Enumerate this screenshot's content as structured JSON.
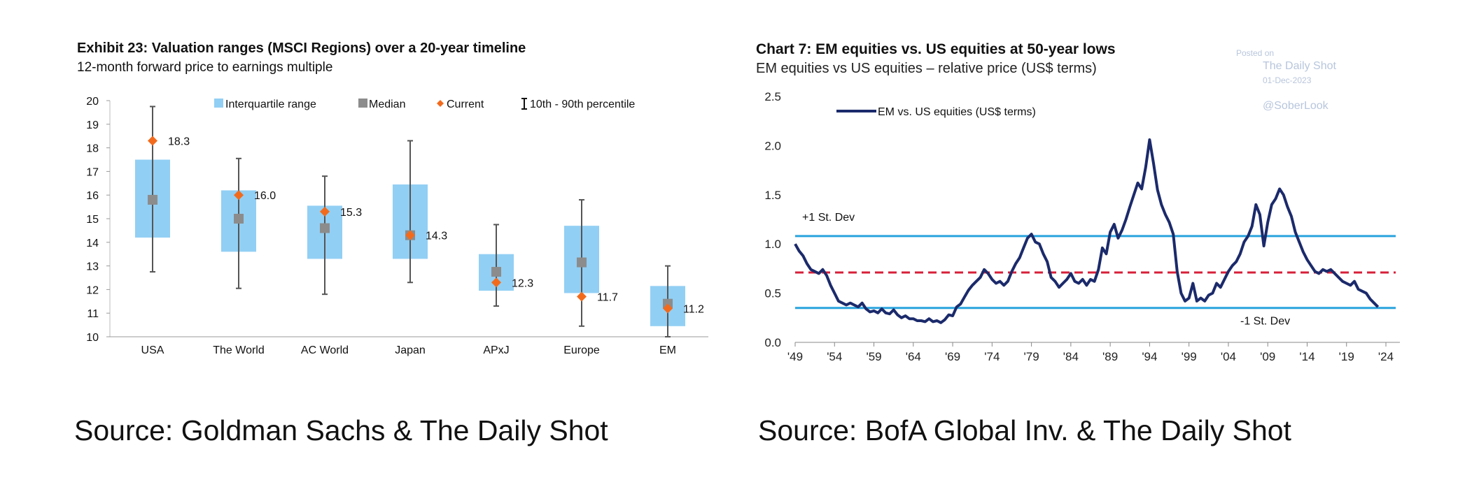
{
  "left_source": "Source: Goldman Sachs & The Daily Shot",
  "right_source": "Source: BofA Global Inv. & The Daily Shot",
  "chart_data": [
    {
      "type": "box",
      "title": "Exhibit 23: Valuation ranges (MSCI Regions) over a 20-year timeline",
      "subtitle": "12-month forward price to earnings multiple",
      "xlabel": "",
      "ylabel": "",
      "ylim": [
        10,
        20
      ],
      "yticks": [
        10,
        11,
        12,
        13,
        14,
        15,
        16,
        17,
        18,
        19,
        20
      ],
      "grid": false,
      "legend_position": "top",
      "legend": [
        "Interquartile range",
        "Median",
        "Current",
        "10th - 90th percentile"
      ],
      "colors": {
        "iqr": "#92cff4",
        "median": "#8c8c8c",
        "current": "#f26b1d",
        "whisker": "#555555"
      },
      "categories": [
        "USA",
        "The World",
        "AC World",
        "Japan",
        "APxJ",
        "Europe",
        "EM"
      ],
      "q1": [
        14.2,
        13.6,
        13.3,
        13.3,
        11.95,
        11.85,
        10.45
      ],
      "q3": [
        17.5,
        16.2,
        15.55,
        16.45,
        13.5,
        14.7,
        12.15
      ],
      "median": [
        15.8,
        15.0,
        14.6,
        14.3,
        12.75,
        13.15,
        11.4
      ],
      "p10": [
        12.75,
        12.05,
        11.8,
        12.3,
        11.3,
        10.45,
        10.0
      ],
      "p90": [
        19.75,
        17.55,
        16.8,
        18.3,
        14.75,
        15.8,
        13.0
      ],
      "current": [
        18.3,
        16.0,
        15.3,
        14.3,
        12.3,
        11.7,
        11.2
      ],
      "current_labels": [
        "18.3",
        "16.0",
        "15.3",
        "14.3",
        "12.3",
        "11.7",
        "11.2"
      ]
    },
    {
      "type": "line",
      "title": "Chart 7: EM equities vs. US equities at 50-year lows",
      "subtitle": "EM equities vs US equities – relative price (US$ terms)",
      "xlabel": "",
      "ylabel": "",
      "ylim": [
        0.0,
        2.5
      ],
      "yticks": [
        "0.0",
        "0.5",
        "1.0",
        "1.5",
        "2.0",
        "2.5"
      ],
      "xlim": [
        1949,
        2024
      ],
      "xticks": [
        "'49",
        "'54",
        "'59",
        "'64",
        "'69",
        "'74",
        "'79",
        "'84",
        "'89",
        "'94",
        "'99",
        "'04",
        "'09",
        "'14",
        "'19",
        "'24"
      ],
      "xtick_years": [
        1949,
        1954,
        1959,
        1964,
        1969,
        1974,
        1979,
        1984,
        1989,
        1994,
        1999,
        2004,
        2009,
        2014,
        2019,
        2024
      ],
      "grid": false,
      "legend_position": "top-left",
      "watermark": {
        "line1": "Posted on",
        "line2": "The Daily Shot",
        "line3": "01-Dec-2023",
        "line4": "@SoberLook"
      },
      "reference_lines": [
        {
          "label": "+1 St. Dev",
          "value": 1.08,
          "color": "#29a3dd",
          "style": "solid"
        },
        {
          "label": "",
          "value": 0.71,
          "color": "#d71f3a",
          "style": "dashed"
        },
        {
          "label": "-1 St. Dev",
          "value": 0.35,
          "color": "#29a3dd",
          "style": "solid"
        }
      ],
      "series": [
        {
          "name": "EM vs. US equities (US$ terms)",
          "color": "#1b2a6b",
          "x": [
            1949,
            1949.5,
            1950,
            1950.5,
            1951,
            1951.5,
            1952,
            1952.5,
            1953,
            1953.5,
            1954,
            1954.5,
            1955,
            1955.5,
            1956,
            1956.5,
            1957,
            1957.5,
            1958,
            1958.5,
            1959,
            1959.5,
            1960,
            1960.5,
            1961,
            1961.5,
            1962,
            1962.5,
            1963,
            1963.5,
            1964,
            1964.5,
            1965,
            1965.5,
            1966,
            1966.5,
            1967,
            1967.5,
            1968,
            1968.5,
            1969,
            1969.5,
            1970,
            1970.5,
            1971,
            1971.5,
            1972,
            1972.5,
            1973,
            1973.5,
            1974,
            1974.5,
            1975,
            1975.5,
            1976,
            1976.5,
            1977,
            1977.5,
            1978,
            1978.5,
            1979,
            1979.5,
            1980,
            1980.5,
            1981,
            1981.5,
            1982,
            1982.5,
            1983,
            1983.5,
            1984,
            1984.5,
            1985,
            1985.5,
            1986,
            1986.5,
            1987,
            1987.5,
            1988,
            1988.5,
            1989,
            1989.5,
            1990,
            1990.5,
            1991,
            1991.5,
            1992,
            1992.5,
            1993,
            1993.5,
            1994,
            1994.5,
            1995,
            1995.5,
            1996,
            1996.5,
            1997,
            1997.5,
            1998,
            1998.5,
            1999,
            1999.5,
            2000,
            2000.5,
            2001,
            2001.5,
            2002,
            2002.5,
            2003,
            2003.5,
            2004,
            2004.5,
            2005,
            2005.5,
            2006,
            2006.5,
            2007,
            2007.5,
            2008,
            2008.5,
            2009,
            2009.5,
            2010,
            2010.5,
            2011,
            2011.5,
            2012,
            2012.5,
            2013,
            2013.5,
            2014,
            2014.5,
            2015,
            2015.5,
            2016,
            2016.5,
            2017,
            2017.5,
            2018,
            2018.5,
            2019,
            2019.5,
            2020,
            2020.5,
            2021,
            2021.5,
            2022,
            2022.5,
            2023
          ],
          "y": [
            1.0,
            0.93,
            0.88,
            0.8,
            0.74,
            0.72,
            0.7,
            0.74,
            0.68,
            0.58,
            0.5,
            0.42,
            0.4,
            0.38,
            0.4,
            0.38,
            0.36,
            0.4,
            0.34,
            0.31,
            0.32,
            0.3,
            0.34,
            0.3,
            0.29,
            0.33,
            0.28,
            0.25,
            0.27,
            0.24,
            0.24,
            0.22,
            0.22,
            0.21,
            0.24,
            0.21,
            0.22,
            0.2,
            0.23,
            0.28,
            0.27,
            0.36,
            0.39,
            0.46,
            0.53,
            0.58,
            0.62,
            0.66,
            0.74,
            0.7,
            0.64,
            0.6,
            0.62,
            0.58,
            0.62,
            0.72,
            0.8,
            0.86,
            0.96,
            1.06,
            1.1,
            1.02,
            1.0,
            0.9,
            0.82,
            0.66,
            0.62,
            0.56,
            0.6,
            0.64,
            0.7,
            0.62,
            0.6,
            0.64,
            0.58,
            0.64,
            0.62,
            0.74,
            0.96,
            0.9,
            1.12,
            1.2,
            1.06,
            1.14,
            1.25,
            1.38,
            1.5,
            1.62,
            1.56,
            1.78,
            2.06,
            1.82,
            1.55,
            1.4,
            1.3,
            1.22,
            1.1,
            0.72,
            0.5,
            0.42,
            0.45,
            0.6,
            0.42,
            0.45,
            0.42,
            0.48,
            0.5,
            0.6,
            0.56,
            0.64,
            0.72,
            0.78,
            0.82,
            0.9,
            1.02,
            1.08,
            1.18,
            1.4,
            1.3,
            0.98,
            1.22,
            1.4,
            1.46,
            1.56,
            1.5,
            1.38,
            1.28,
            1.12,
            1.02,
            0.92,
            0.84,
            0.78,
            0.72,
            0.7,
            0.74,
            0.72,
            0.74,
            0.7,
            0.66,
            0.62,
            0.6,
            0.58,
            0.62,
            0.54,
            0.52,
            0.5,
            0.44,
            0.4,
            0.36
          ]
        }
      ]
    }
  ]
}
